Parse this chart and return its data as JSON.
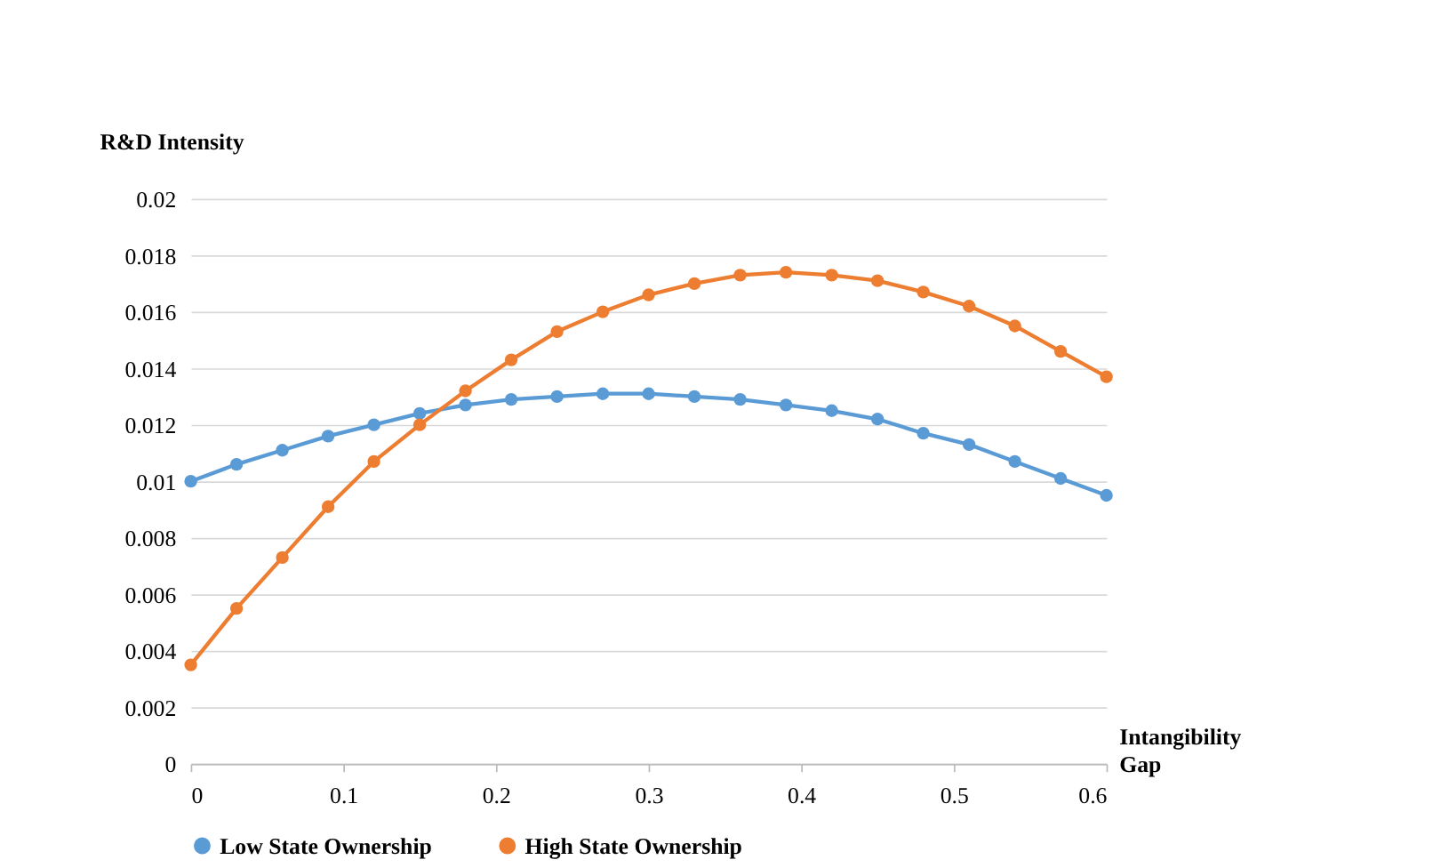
{
  "chart_data": {
    "type": "line",
    "ylabel": "R&D Intensity",
    "xlabel": "Intangibility Gap",
    "x": [
      0,
      0.03,
      0.06,
      0.09,
      0.12,
      0.15,
      0.18,
      0.21,
      0.24,
      0.27,
      0.3,
      0.33,
      0.36,
      0.39,
      0.42,
      0.45,
      0.48,
      0.51,
      0.54,
      0.57,
      0.6
    ],
    "series": [
      {
        "name": "Low State Ownership",
        "color": "#5b9bd5",
        "values": [
          0.01,
          0.0106,
          0.0111,
          0.0116,
          0.012,
          0.0124,
          0.0127,
          0.0129,
          0.013,
          0.0131,
          0.0131,
          0.013,
          0.0129,
          0.0127,
          0.0125,
          0.0122,
          0.0117,
          0.0113,
          0.0107,
          0.0101,
          0.0095
        ]
      },
      {
        "name": "High State Ownership",
        "color": "#ed7d31",
        "values": [
          0.0035,
          0.0055,
          0.0073,
          0.0091,
          0.0107,
          0.012,
          0.0132,
          0.0143,
          0.0153,
          0.016,
          0.0166,
          0.017,
          0.0173,
          0.0174,
          0.0173,
          0.0171,
          0.0167,
          0.0162,
          0.0155,
          0.0146,
          0.0137
        ]
      }
    ],
    "xlim": [
      0,
      0.6
    ],
    "xticks": [
      0,
      0.1,
      0.2,
      0.3,
      0.4,
      0.5,
      0.6
    ],
    "ylim": [
      0,
      0.02
    ],
    "yticks": [
      0,
      0.002,
      0.004,
      0.006,
      0.008,
      0.01,
      0.012,
      0.014,
      0.016,
      0.018,
      0.02
    ],
    "grid": "y",
    "legend": "bottom",
    "marker": "circle",
    "line_style": "solid"
  }
}
